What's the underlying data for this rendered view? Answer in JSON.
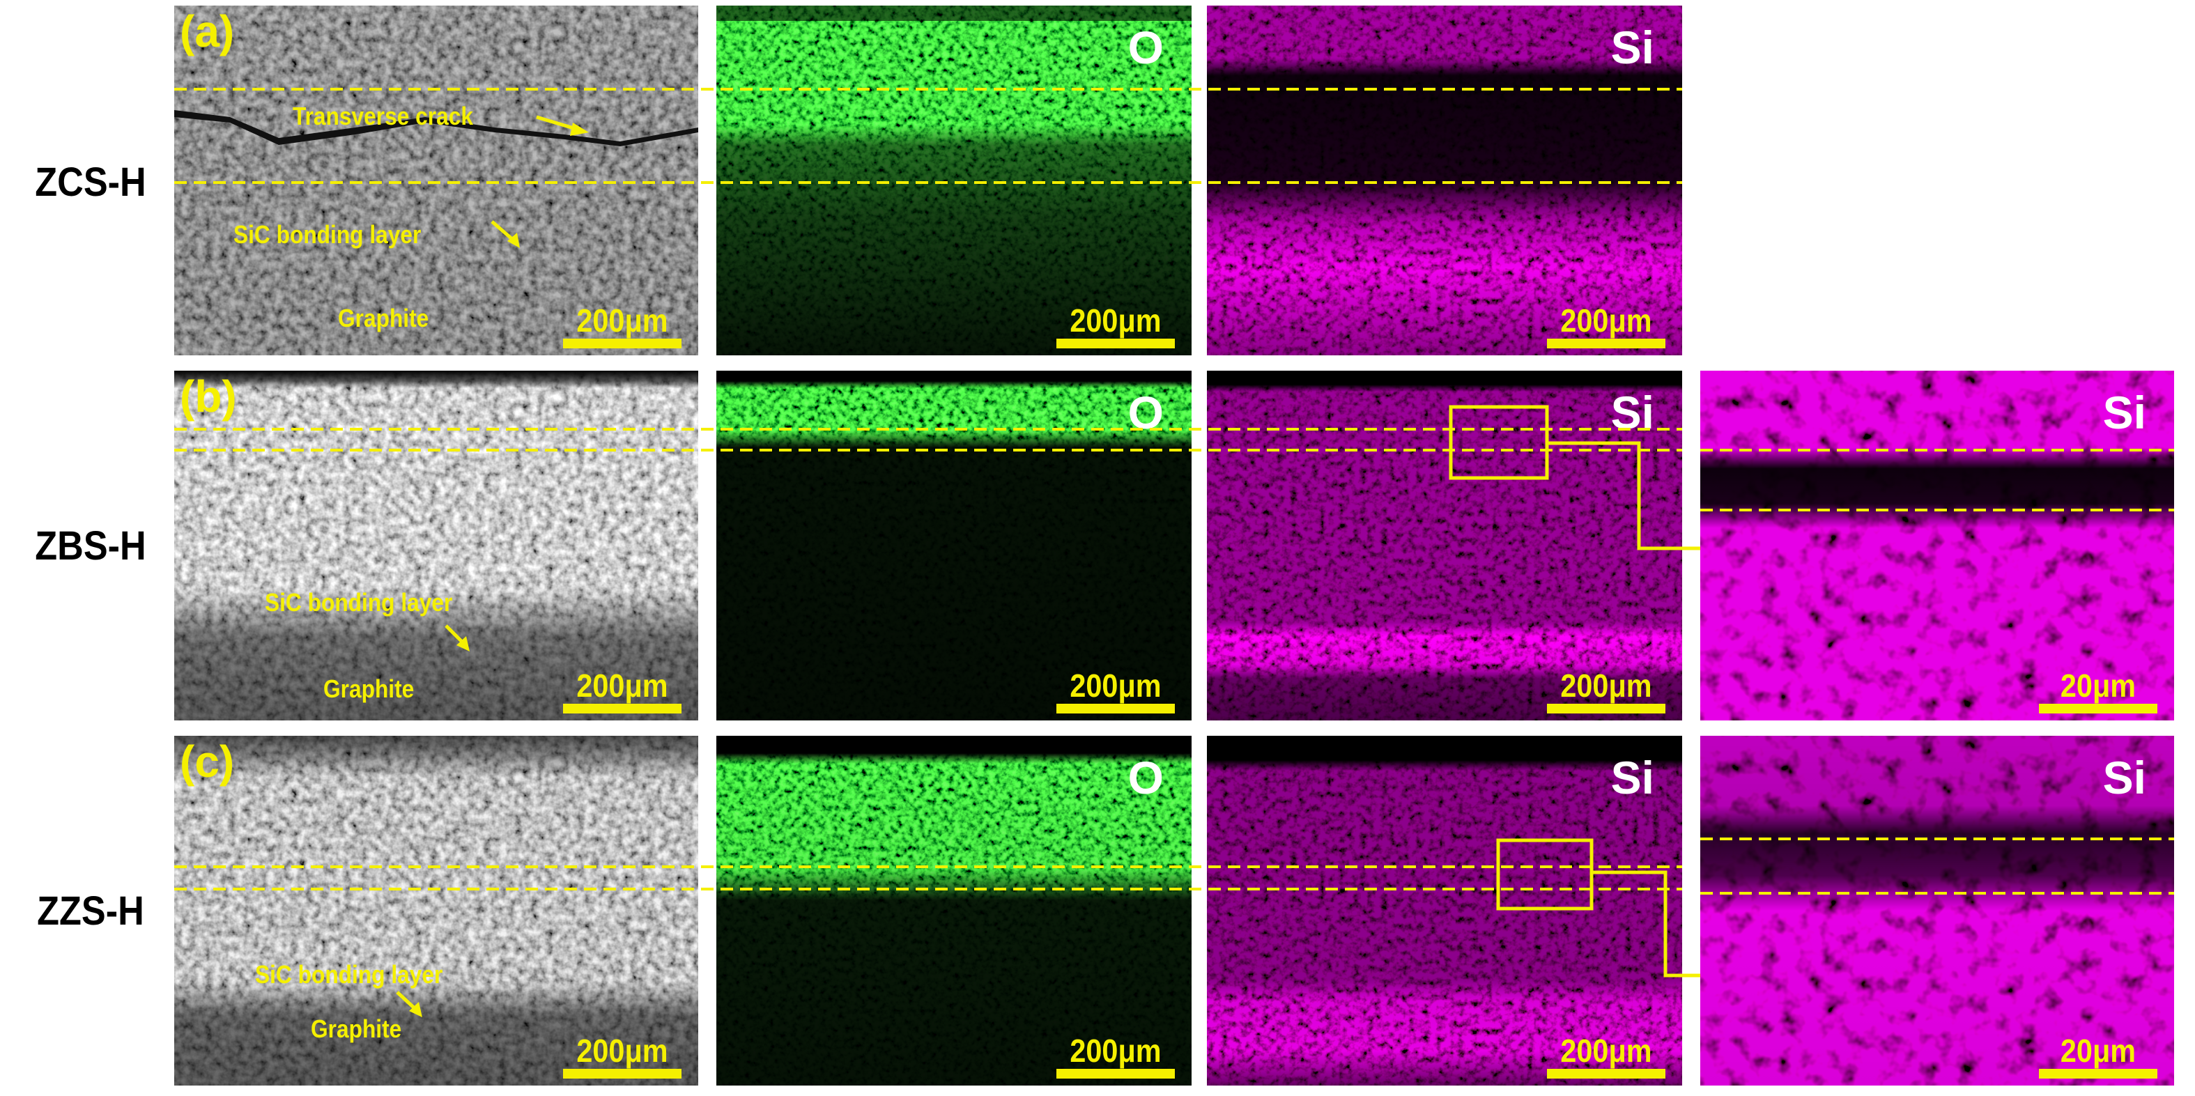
{
  "colors": {
    "annotation": "#f5f000",
    "element_label": "#ffffff",
    "oxygen_map": "#00e000",
    "silicon_map": "#ff00ff",
    "row_label": "#000000"
  },
  "rows": [
    {
      "label": "ZCS-H",
      "letter": "(a)",
      "annotations": {
        "crack": "Transverse crack",
        "bonding": "SiC bonding layer",
        "graphite": "Graphite"
      },
      "sem_scale": "200μm",
      "o_map": {
        "element": "O",
        "scale": "200μm"
      },
      "si_map": {
        "element": "Si",
        "scale": "200μm"
      }
    },
    {
      "label": "ZBS-H",
      "letter": "(b)",
      "annotations": {
        "bonding": "SiC bonding layer",
        "graphite": "Graphite"
      },
      "sem_scale": "200μm",
      "o_map": {
        "element": "O",
        "scale": "200μm"
      },
      "si_map": {
        "element": "Si",
        "scale": "200μm"
      },
      "si_zoom": {
        "element": "Si",
        "scale": "20μm"
      }
    },
    {
      "label": "ZZS-H",
      "letter": "(c)",
      "annotations": {
        "bonding": "SiC bonding layer",
        "graphite": "Graphite"
      },
      "sem_scale": "200μm",
      "o_map": {
        "element": "O",
        "scale": "200μm"
      },
      "si_map": {
        "element": "Si",
        "scale": "200μm"
      },
      "si_zoom": {
        "element": "Si",
        "scale": "20μm"
      }
    }
  ]
}
